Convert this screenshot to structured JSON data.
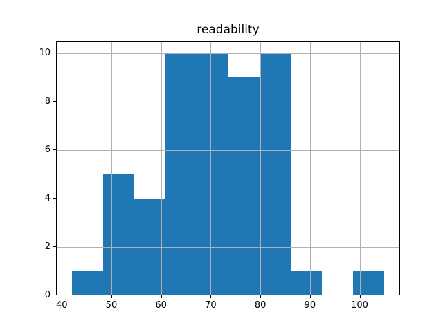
{
  "chart_data": {
    "type": "bar",
    "subtype": "histogram",
    "title": "readability",
    "xlabel": "",
    "ylabel": "",
    "bin_edges": [
      42,
      48.3,
      54.6,
      60.9,
      67.2,
      73.5,
      79.8,
      86.1,
      92.4,
      98.7,
      105
    ],
    "counts": [
      1,
      5,
      4,
      10,
      10,
      9,
      10,
      1,
      0,
      1
    ],
    "xticks": [
      40,
      50,
      60,
      70,
      80,
      90,
      100
    ],
    "yticks": [
      0,
      2,
      4,
      6,
      8,
      10
    ],
    "xlim": [
      38.85,
      108.15
    ],
    "ylim": [
      0,
      10.5
    ],
    "grid": true,
    "legend": "none",
    "bar_color": "#1f77b4",
    "grid_color": "#b0b0b0",
    "axis_color": "#000000",
    "background_color": "#ffffff"
  }
}
